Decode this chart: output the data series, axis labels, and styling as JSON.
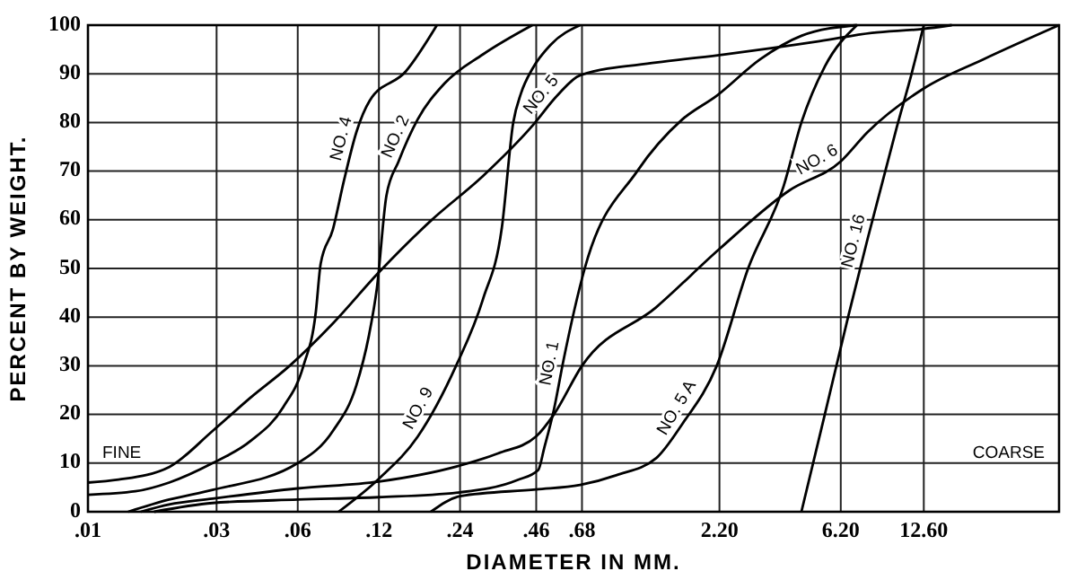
{
  "chart_data": {
    "type": "line",
    "xlabel": "DIAMETER IN MM.",
    "ylabel": "PERCENT BY WEIGHT.",
    "log": "x",
    "xlim": [
      0.01,
      40
    ],
    "ylim": [
      0,
      100
    ],
    "xticks": [
      {
        "value": 0.01,
        "label": ".01"
      },
      {
        "value": 0.03,
        "label": ".03"
      },
      {
        "value": 0.06,
        "label": ".06"
      },
      {
        "value": 0.12,
        "label": ".12"
      },
      {
        "value": 0.24,
        "label": ".24"
      },
      {
        "value": 0.46,
        "label": ".46"
      },
      {
        "value": 0.68,
        "label": ".68"
      },
      {
        "value": 2.2,
        "label": "2.20"
      },
      {
        "value": 6.2,
        "label": "6.20"
      },
      {
        "value": 12.6,
        "label": "12.60"
      }
    ],
    "yticks": [
      0,
      10,
      20,
      30,
      40,
      50,
      60,
      70,
      80,
      90,
      100
    ],
    "grid": true,
    "marker": "none",
    "line_style": "solid",
    "annotations": [
      "FINE",
      "COARSE"
    ],
    "series": [
      {
        "name": "NO. 4",
        "color": "#000000",
        "x": [
          0.01,
          0.015,
          0.02,
          0.029,
          0.04,
          0.053,
          0.063,
          0.07,
          0.073,
          0.081,
          0.089,
          0.099,
          0.111,
          0.151,
          0.197
        ],
        "values": [
          3.5,
          4.2,
          6,
          10,
          14.5,
          21.5,
          30,
          41,
          51,
          58,
          68,
          78,
          84.5,
          90.5,
          100
        ]
      },
      {
        "name": "NO. 2",
        "color": "#000000",
        "x": [
          0.0141,
          0.02,
          0.029,
          0.06,
          0.081,
          0.099,
          0.11,
          0.118,
          0.128,
          0.142,
          0.167,
          0.21,
          0.292,
          0.445
        ],
        "values": [
          0,
          2.5,
          4.5,
          10,
          16.6,
          26,
          36,
          46,
          65,
          72,
          80.6,
          88,
          94,
          100
        ]
      },
      {
        "name": "NO. 5",
        "color": "#000000",
        "x": [
          0.01,
          0.013,
          0.02,
          0.029,
          0.04,
          0.056,
          0.081,
          0.12,
          0.187,
          0.292,
          0.445,
          0.552,
          0.669,
          1.28,
          2.3,
          5.17,
          8.09,
          12.4,
          16.0
        ],
        "values": [
          6,
          6.6,
          9.2,
          16.6,
          23.4,
          30,
          38.7,
          49.2,
          59.8,
          69,
          79.3,
          85.6,
          89.7,
          92.3,
          94,
          96.7,
          98.4,
          99.2,
          100
        ]
      },
      {
        "name": "NO. 9",
        "color": "#000000",
        "x": [
          0.085,
          0.12,
          0.167,
          0.232,
          0.292,
          0.343,
          0.378,
          0.404,
          0.445,
          0.521,
          0.669
        ],
        "values": [
          0,
          6.8,
          15.4,
          30,
          43.7,
          58.4,
          80,
          86,
          91,
          96,
          100
        ]
      },
      {
        "name": "NO. 1",
        "color": "#000000",
        "x": [
          0.0176,
          0.029,
          0.06,
          0.12,
          0.24,
          0.391,
          0.468,
          0.492,
          0.535,
          0.58,
          0.696,
          1.09,
          1.6,
          2.15,
          3.12,
          4.43,
          7.12
        ],
        "values": [
          0,
          1.8,
          2.5,
          3,
          4,
          6.5,
          8.6,
          13,
          21,
          31,
          50,
          70,
          80.6,
          85.5,
          93,
          97.8,
          100
        ]
      },
      {
        "name": "NO. 5 A",
        "color": "#000000",
        "x": [
          0.187,
          0.24,
          0.46,
          0.669,
          0.91,
          1.28,
          1.6,
          2.15,
          2.81,
          3.81,
          4.43,
          5.41,
          7.12
        ],
        "values": [
          0,
          3.2,
          4.6,
          5.5,
          7.5,
          11,
          18,
          30,
          50,
          67,
          80,
          91.5,
          100
        ]
      },
      {
        "name": "NO. 6",
        "color": "#000000",
        "x": [
          0.0157,
          0.02,
          0.029,
          0.06,
          0.12,
          0.24,
          0.332,
          0.46,
          0.535,
          0.68,
          1.28,
          2.2,
          3.99,
          6.2,
          7.79,
          12.6,
          21.0,
          40
        ],
        "values": [
          0,
          1.5,
          2.7,
          4.8,
          6.2,
          9.5,
          12,
          15.5,
          20,
          30,
          42,
          54,
          66,
          72,
          78,
          87,
          93,
          100
        ]
      },
      {
        "name": "NO. 16",
        "color": "#000000",
        "x": [
          4.43,
          5.41,
          6.6,
          7.79,
          10.0,
          11.4,
          12.6
        ],
        "values": [
          0,
          20,
          40,
          56,
          79,
          90.4,
          100
        ]
      }
    ]
  }
}
